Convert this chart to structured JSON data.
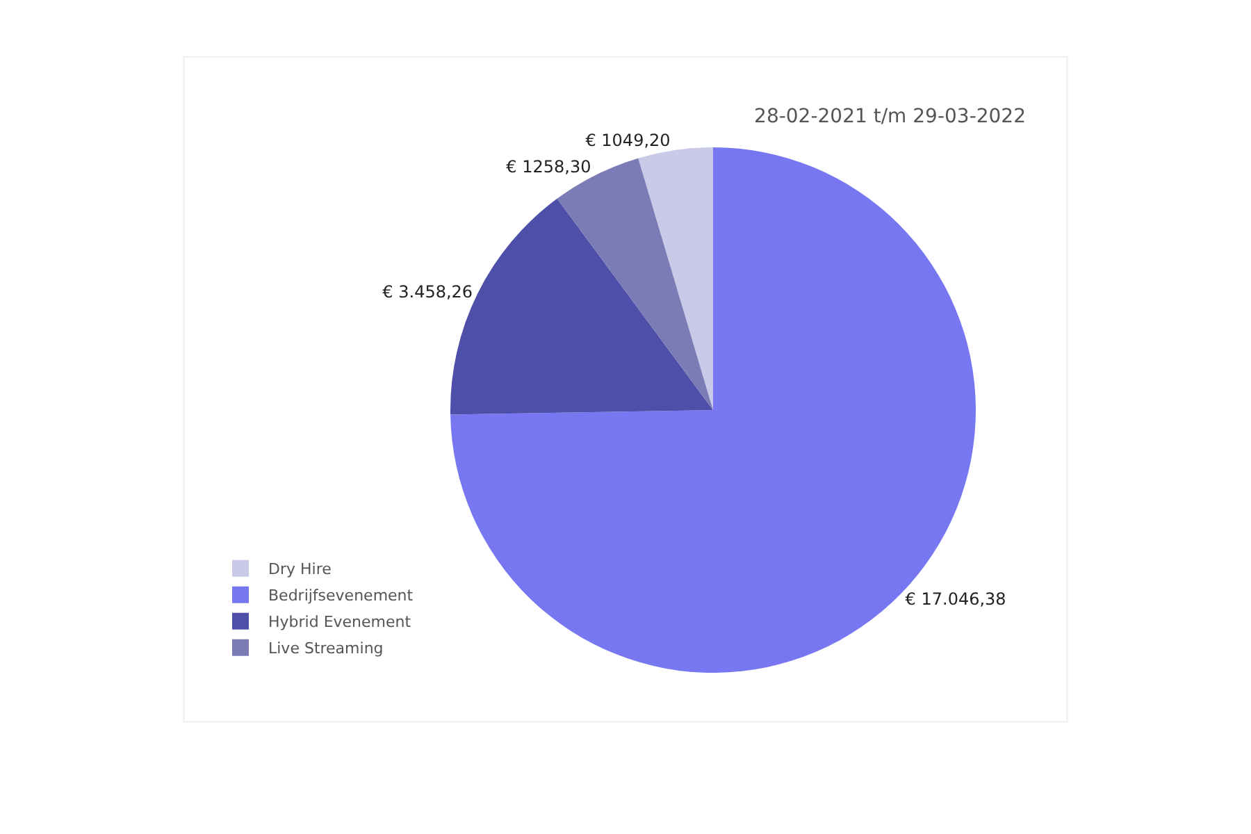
{
  "chart_data": {
    "type": "pie",
    "title": "28-02-2021 t/m 29-03-2022",
    "categories": [
      "Dry Hire",
      "Bedrijfsevenement",
      "Hybrid Evenement",
      "Live Streaming"
    ],
    "values": [
      1049.2,
      17046.38,
      3458.26,
      1258.3
    ],
    "value_labels": [
      "€ 1049,20",
      "€ 17.046,38",
      "€ 3.458,26",
      "€ 1258,30"
    ],
    "colors": [
      "#c9c9e8",
      "#7777f2",
      "#4e4fa8",
      "#7b7bb6"
    ],
    "legend": "bottom left"
  }
}
